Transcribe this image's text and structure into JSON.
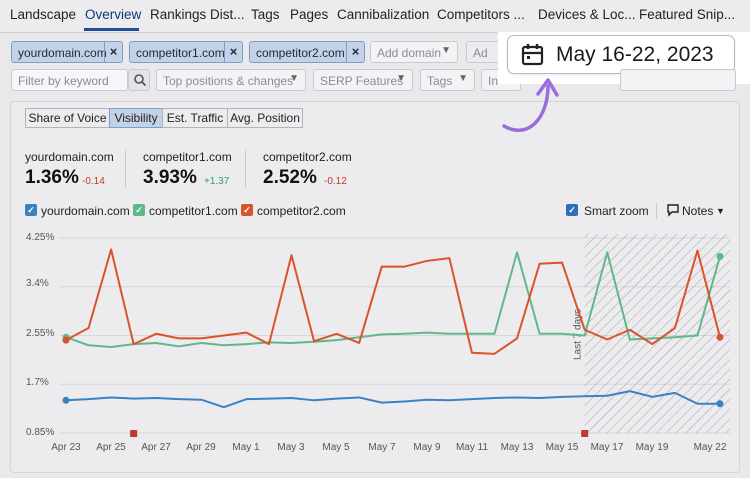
{
  "nav": {
    "tabs": [
      "Landscape",
      "Overview",
      "Rankings Dist...",
      "Tags",
      "Pages",
      "Cannibalization",
      "Competitors ...",
      "Devices & Loc...",
      "Featured Snip..."
    ],
    "active": "Overview"
  },
  "domains": {
    "chips": [
      "yourdomain.com",
      "competitor1.com",
      "competitor2.com"
    ],
    "remove_icon": "×",
    "add_placeholder": "Add domain",
    "add_button": "Ad"
  },
  "filters": {
    "keyword_placeholder": "Filter by keyword",
    "positions": "Top positions & changes",
    "serp": "SERP Features",
    "tags": "Tags",
    "intent": "In"
  },
  "date_range": {
    "label": "May 16-22, 2023",
    "icon": "calendar-icon"
  },
  "metric_tabs": [
    "Share of Voice",
    "Visibility",
    "Est. Traffic",
    "Avg. Position"
  ],
  "metric_selected": "Visibility",
  "stats": [
    {
      "domain": "yourdomain.com",
      "value": "1.36%",
      "delta": "-0.14",
      "delta_color": "#c0392b"
    },
    {
      "domain": "competitor1.com",
      "value": "3.93%",
      "delta": "+1.37",
      "delta_color": "#2e9e62"
    },
    {
      "domain": "competitor2.com",
      "value": "2.52%",
      "delta": "-0.12",
      "delta_color": "#c0392b"
    }
  ],
  "legend": [
    {
      "name": "yourdomain.com",
      "color": "#3b82c4"
    },
    {
      "name": "competitor1.com",
      "color": "#5fb88a"
    },
    {
      "name": "competitor2.com",
      "color": "#d9532b"
    }
  ],
  "controls": {
    "smart_zoom": "Smart zoom",
    "notes": "Notes"
  },
  "colors": {
    "your": "#3b82c4",
    "comp1": "#5fb88a",
    "comp2": "#d9532b",
    "accent": "#9b6be0",
    "chip_bg": "#c4d2e6"
  },
  "chart_data": {
    "type": "line",
    "annotation": "Last 7 days",
    "y_ticks": [
      "4.25%",
      "3.4%",
      "2.55%",
      "1.7%",
      "0.85%"
    ],
    "ylim": [
      0.85,
      4.25
    ],
    "x_tick_labels": [
      "Apr 23",
      "Apr 25",
      "Apr 27",
      "Apr 29",
      "May 1",
      "May 3",
      "May 5",
      "May 7",
      "May 9",
      "May 11",
      "May 13",
      "May 15",
      "May 17",
      "May 19",
      "May 22"
    ],
    "x": [
      "Apr 23",
      "Apr 24",
      "Apr 25",
      "Apr 26",
      "Apr 27",
      "Apr 28",
      "Apr 29",
      "Apr 30",
      "May 1",
      "May 2",
      "May 3",
      "May 4",
      "May 5",
      "May 6",
      "May 7",
      "May 8",
      "May 9",
      "May 10",
      "May 11",
      "May 12",
      "May 13",
      "May 14",
      "May 15",
      "May 16",
      "May 17",
      "May 18",
      "May 19",
      "May 20",
      "May 21",
      "May 22"
    ],
    "series": [
      {
        "name": "yourdomain.com",
        "color": "#3b82c4",
        "values": [
          1.42,
          1.44,
          1.47,
          1.45,
          1.46,
          1.44,
          1.43,
          1.3,
          1.44,
          1.45,
          1.46,
          1.42,
          1.45,
          1.47,
          1.38,
          1.4,
          1.43,
          1.42,
          1.44,
          1.46,
          1.47,
          1.46,
          1.48,
          1.49,
          1.5,
          1.58,
          1.48,
          1.55,
          1.36,
          1.36
        ]
      },
      {
        "name": "competitor1.com",
        "color": "#5fb88a",
        "values": [
          2.52,
          2.38,
          2.35,
          2.4,
          2.42,
          2.36,
          2.42,
          2.38,
          2.4,
          2.43,
          2.42,
          2.44,
          2.47,
          2.52,
          2.57,
          2.58,
          2.6,
          2.58,
          2.58,
          2.58,
          4.0,
          2.58,
          2.58,
          2.55,
          4.0,
          2.48,
          2.5,
          2.52,
          2.55,
          3.93
        ]
      },
      {
        "name": "competitor2.com",
        "color": "#d9532b",
        "values": [
          2.47,
          2.68,
          4.05,
          2.4,
          2.58,
          2.5,
          2.5,
          2.55,
          2.6,
          2.4,
          3.95,
          2.45,
          2.58,
          2.42,
          3.75,
          3.75,
          3.85,
          3.9,
          2.25,
          2.23,
          2.5,
          3.8,
          3.82,
          2.65,
          2.48,
          2.65,
          2.4,
          2.68,
          4.03,
          2.52
        ]
      }
    ],
    "markers": [
      "Apr 26",
      "May 16"
    ]
  }
}
